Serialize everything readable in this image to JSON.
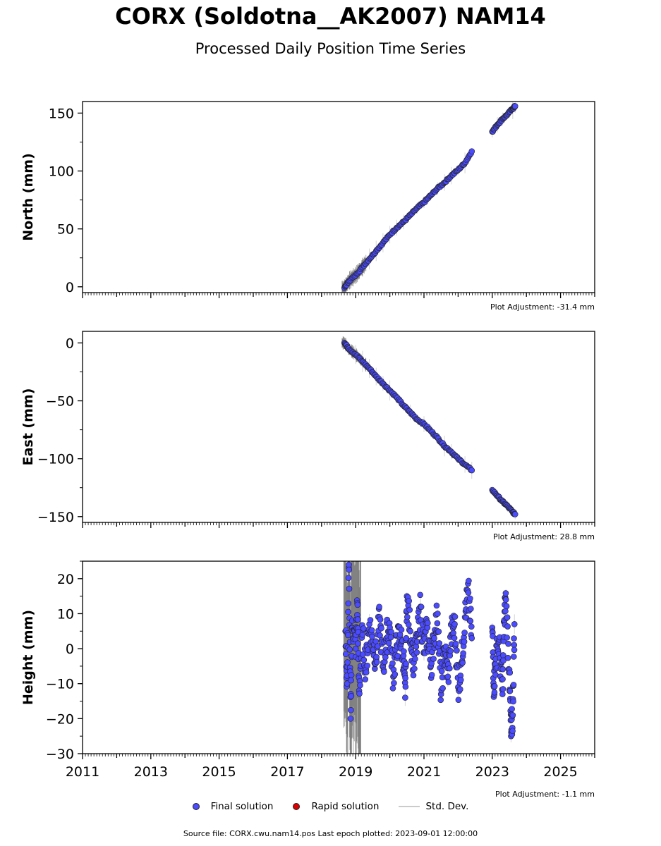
{
  "header": {
    "title": "CORX (Soldotna__AK2007) NAM14",
    "subtitle": "Processed Daily Position Time Series"
  },
  "legend": {
    "final_label": "Final solution",
    "rapid_label": "Rapid solution",
    "std_label": "Std. Dev.",
    "final_color": "#4b4bff",
    "rapid_color": "#dd0000"
  },
  "footer": {
    "text": "Source file: CORX.cwu.nam14.pos  Last epoch plotted: 2023-09-01 12:00:00"
  },
  "chart_data": [
    {
      "type": "scatter",
      "ylabel": "North (mm)",
      "xlim": [
        2011,
        2026
      ],
      "ylim": [
        -5,
        160
      ],
      "yticks": [
        0,
        50,
        100,
        150
      ],
      "ytick_labels": [
        "0",
        "50",
        "100",
        "150"
      ],
      "xticks": [
        2011,
        2013,
        2015,
        2017,
        2019,
        2021,
        2023,
        2025
      ],
      "xtick_labels": [],
      "adjustment": "Plot Adjustment: -31.4 mm",
      "series": [
        {
          "x": [
            2018.67,
            2018.8,
            2019.0,
            2019.2,
            2019.4,
            2019.6,
            2019.8,
            2020.0,
            2020.2,
            2020.4,
            2020.6,
            2020.8,
            2021.0,
            2021.2,
            2021.4,
            2021.6,
            2021.8,
            2022.0,
            2022.2,
            2022.4,
            2023.0,
            2023.15,
            2023.3,
            2023.45,
            2023.6,
            2023.67
          ],
          "y": [
            -1,
            5,
            10,
            17,
            24,
            31,
            38,
            45,
            51,
            56,
            62,
            68,
            73,
            79,
            85,
            90,
            96,
            101,
            107,
            117,
            134,
            140,
            145,
            149,
            154,
            156
          ]
        }
      ],
      "stddev_band": {
        "x_start": 2018.6,
        "x_end": 2019.3,
        "half_width": 8
      }
    },
    {
      "type": "scatter",
      "ylabel": "East (mm)",
      "xlim": [
        2011,
        2026
      ],
      "ylim": [
        -155,
        10
      ],
      "yticks": [
        0,
        -50,
        -100,
        -150
      ],
      "ytick_labels": [
        "0",
        "−50",
        "−100",
        "−150"
      ],
      "xticks": [
        2011,
        2013,
        2015,
        2017,
        2019,
        2021,
        2023,
        2025
      ],
      "xtick_labels": [],
      "adjustment": "Plot Adjustment: 28.8 mm",
      "series": [
        {
          "x": [
            2018.67,
            2018.8,
            2019.0,
            2019.2,
            2019.4,
            2019.6,
            2019.8,
            2020.0,
            2020.2,
            2020.4,
            2020.6,
            2020.8,
            2021.0,
            2021.2,
            2021.4,
            2021.6,
            2021.8,
            2022.0,
            2022.2,
            2022.4,
            2023.0,
            2023.15,
            2023.3,
            2023.45,
            2023.6,
            2023.67
          ],
          "y": [
            0,
            -5,
            -10,
            -16,
            -22,
            -29,
            -35,
            -41,
            -47,
            -54,
            -60,
            -66,
            -70,
            -76,
            -82,
            -89,
            -94,
            -100,
            -105,
            -110,
            -127,
            -132,
            -137,
            -141,
            -146,
            -148
          ]
        }
      ],
      "stddev_band": {
        "x_start": 2018.6,
        "x_end": 2019.3,
        "half_width": 6
      }
    },
    {
      "type": "scatter",
      "ylabel": "Height (mm)",
      "xlim": [
        2011,
        2026
      ],
      "ylim": [
        -30,
        25
      ],
      "yticks": [
        20,
        10,
        0,
        -10,
        -20,
        -30
      ],
      "ytick_labels": [
        "20",
        "10",
        "0",
        "−10",
        "−20",
        "−30"
      ],
      "xticks": [
        2011,
        2013,
        2015,
        2017,
        2019,
        2021,
        2023,
        2025
      ],
      "xtick_labels": [
        "2011",
        "2013",
        "2015",
        "2017",
        "2019",
        "2021",
        "2023",
        "2025"
      ],
      "adjustment": "Plot Adjustment: -1.1 mm",
      "series": [
        {
          "x": [
            2018.7,
            2018.75,
            2018.8,
            2018.85,
            2018.9,
            2019.0,
            2019.05,
            2019.1,
            2019.2,
            2019.3,
            2019.4,
            2019.5,
            2019.6,
            2019.7,
            2019.8,
            2019.9,
            2020.0,
            2020.1,
            2020.2,
            2020.3,
            2020.4,
            2020.45,
            2020.5,
            2020.6,
            2020.7,
            2020.8,
            2020.9,
            2021.0,
            2021.1,
            2021.2,
            2021.3,
            2021.4,
            2021.5,
            2021.6,
            2021.7,
            2021.8,
            2021.9,
            2022.0,
            2022.1,
            2022.2,
            2022.3,
            2022.4,
            2023.0,
            2023.05,
            2023.1,
            2023.2,
            2023.3,
            2023.35,
            2023.4,
            2023.5,
            2023.55,
            2023.6,
            2023.65
          ],
          "y": [
            5,
            -10,
            24,
            -20,
            8,
            0,
            13,
            -12,
            4,
            -6,
            7,
            2,
            -3,
            9,
            -5,
            3,
            6,
            -8,
            1,
            4,
            -2,
            -14,
            15,
            5,
            -4,
            2,
            12,
            -1,
            6,
            -5,
            3,
            10,
            -13,
            0,
            -8,
            4,
            7,
            -11,
            -4,
            9,
            16,
            3,
            6,
            -11,
            -3,
            2,
            -13,
            8,
            14,
            -6,
            -25,
            -19,
            7
          ]
        }
      ],
      "stddev_band": {
        "x_start": 2018.65,
        "x_end": 2019.15,
        "half_width": 40
      }
    }
  ]
}
